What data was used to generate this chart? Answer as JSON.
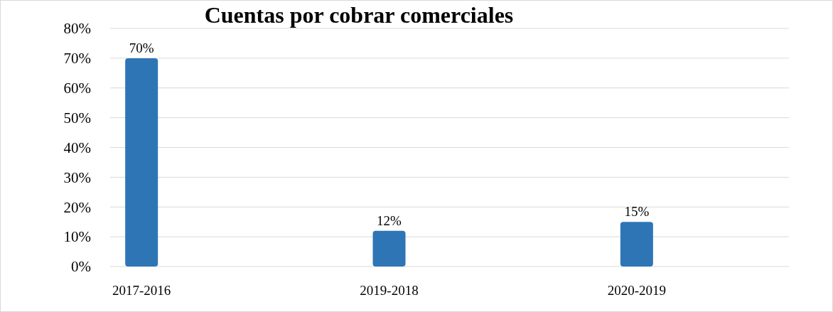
{
  "chart_data": {
    "type": "bar",
    "title": "Cuentas por cobrar comerciales",
    "categories": [
      "2017-2016",
      "2019-2018",
      "2020-2019"
    ],
    "values": [
      70,
      12,
      15
    ],
    "value_labels": [
      "70%",
      "12%",
      "15%"
    ],
    "color": "#2e75b6",
    "ylim": [
      0,
      80
    ],
    "yticks": [
      {
        "value": 0,
        "label": "0%"
      },
      {
        "value": 10,
        "label": "10%"
      },
      {
        "value": 20,
        "label": "20%"
      },
      {
        "value": 30,
        "label": "30%"
      },
      {
        "value": 40,
        "label": "40%"
      },
      {
        "value": 50,
        "label": "50%"
      },
      {
        "value": 60,
        "label": "60%"
      },
      {
        "value": 70,
        "label": "70%"
      },
      {
        "value": 80,
        "label": "80%"
      }
    ],
    "grid": "y"
  }
}
